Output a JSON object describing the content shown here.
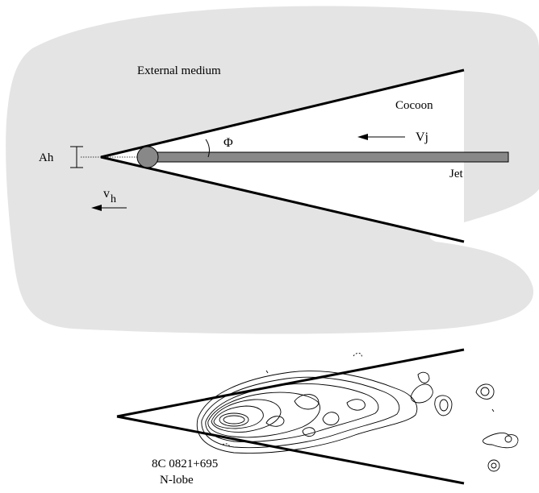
{
  "labels": {
    "external_medium": "External medium",
    "cocoon": "Cocoon",
    "phi": "Φ",
    "vj": "Vj",
    "jet": "Jet",
    "ah": "Ah",
    "vh_base": "v",
    "vh_sub": "h",
    "source_name": "8C 0821+695",
    "source_lobe": "N-lobe"
  },
  "colors": {
    "medium": "#e4e4e4",
    "jet_fill": "#888888",
    "lines": "#000000"
  }
}
